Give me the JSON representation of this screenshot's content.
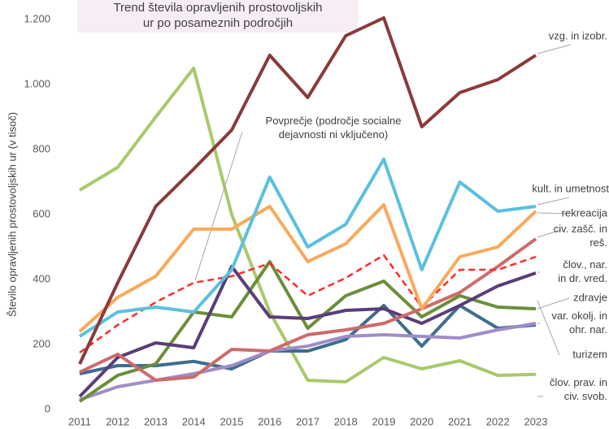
{
  "chart_data": {
    "type": "line",
    "title": "Trend števila opravljenih prostovoljskih ur po posameznih področjih",
    "y_label": "Število opravljenih prostovoljskih ur (v tisoč)",
    "categories": [
      "2011",
      "2012",
      "2013",
      "2014",
      "2015",
      "2016",
      "2017",
      "2018",
      "2019",
      "2020",
      "2021",
      "2022",
      "2023"
    ],
    "ylim": [
      0,
      1200
    ],
    "yticks": [
      0,
      200,
      400,
      600,
      800,
      {
        "value": 1000,
        "label": "1.000"
      },
      {
        "value": 1200,
        "label": "1.200"
      }
    ],
    "series": [
      {
        "name": "člov. prav. in civ. svob.",
        "color": "#a9c96b",
        "values": [
          675,
          745,
          900,
          1050,
          600,
          300,
          90,
          85,
          160,
          125,
          150,
          105,
          108
        ]
      },
      {
        "name": "turizem",
        "color": "#3e6d8e",
        "values": [
          110,
          135,
          135,
          148,
          125,
          180,
          180,
          215,
          320,
          195,
          320,
          250,
          260
        ]
      },
      {
        "name": "var. okolj. in ohr. nar.",
        "color": "#a08cc8",
        "values": [
          30,
          70,
          90,
          110,
          135,
          180,
          195,
          225,
          230,
          225,
          220,
          245,
          265
        ]
      },
      {
        "name": "zdravje",
        "color": "#6b8e3a",
        "values": [
          25,
          105,
          140,
          300,
          285,
          455,
          250,
          350,
          395,
          285,
          350,
          315,
          310
        ]
      },
      {
        "name": "člov., nar. in dr. vred.",
        "color": "#5a3d7a",
        "values": [
          40,
          160,
          205,
          190,
          440,
          285,
          280,
          305,
          310,
          265,
          320,
          380,
          420
        ]
      },
      {
        "name": "civ. zašč. in reš.",
        "color": "#cd6b6b",
        "values": [
          115,
          170,
          90,
          100,
          185,
          180,
          230,
          245,
          265,
          310,
          360,
          440,
          525
        ]
      },
      {
        "name": "Povprečje (področje socialne dejavnosti ni vključeno)",
        "color": "#ff2a2a",
        "dashed": true,
        "values": [
          175,
          260,
          330,
          390,
          410,
          450,
          350,
          405,
          475,
          315,
          430,
          430,
          470
        ]
      },
      {
        "name": "rekreacija",
        "color": "#f9a95a",
        "values": [
          240,
          345,
          410,
          555,
          555,
          625,
          455,
          510,
          630,
          310,
          470,
          500,
          610
        ]
      },
      {
        "name": "kult. in umetnost",
        "color": "#5bc0de",
        "values": [
          225,
          300,
          315,
          300,
          430,
          715,
          500,
          570,
          770,
          430,
          700,
          610,
          625
        ]
      },
      {
        "name": "vzg. in izobr.",
        "color": "#8b3a3a",
        "values": [
          140,
          390,
          625,
          740,
          860,
          1090,
          960,
          1150,
          1205,
          870,
          975,
          1015,
          1090
        ]
      }
    ]
  }
}
